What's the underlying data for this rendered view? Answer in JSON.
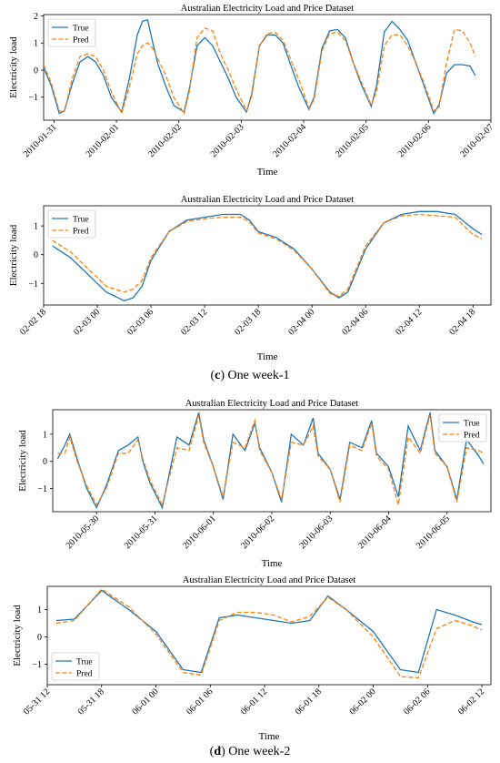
{
  "colors": {
    "true": "#1f77b4",
    "pred": "#ff7f0e"
  },
  "captions": [
    {
      "label": "c",
      "text": " One week-1"
    },
    {
      "label": "d",
      "text": " One week-2"
    }
  ],
  "chart_data": [
    {
      "type": "line",
      "title": "Australian Electricity Load and Price Dataset",
      "xlabel": "Time",
      "ylabel": "Electricity load",
      "x_range": [
        "2010-01-30 20:00",
        "2010-02-07 00:00"
      ],
      "ylim": [
        -1.85,
        2.05
      ],
      "x_ticks": [
        "2010-01-31",
        "2010-02-01",
        "2010-02-02",
        "2010-02-03",
        "2010-02-04",
        "2010-02-05",
        "2010-02-06",
        "2010-02-07"
      ],
      "y_ticks": [
        -1,
        0,
        1,
        2
      ],
      "legend": "upper left",
      "series": [
        {
          "name": "True",
          "color": "#1f77b4",
          "style": "solid",
          "x": [
            "2010-01-30 20:00",
            "2010-01-30 23:00",
            "2010-01-31 02:00",
            "2010-01-31 04:00",
            "2010-01-31 07:00",
            "2010-01-31 10:00",
            "2010-01-31 13:00",
            "2010-01-31 16:00",
            "2010-01-31 19:00",
            "2010-01-31 22:00",
            "2010-02-01 02:00",
            "2010-02-01 05:00",
            "2010-02-01 08:00",
            "2010-02-01 10:00",
            "2010-02-01 12:00",
            "2010-02-01 14:00",
            "2010-02-01 16:00",
            "2010-02-01 19:00",
            "2010-02-01 22:00",
            "2010-02-02 02:00",
            "2010-02-02 04:00",
            "2010-02-02 07:00",
            "2010-02-02 10:00",
            "2010-02-02 13:00",
            "2010-02-02 16:00",
            "2010-02-02 19:00",
            "2010-02-02 22:00",
            "2010-02-03 02:00",
            "2010-02-03 04:00",
            "2010-02-03 07:00",
            "2010-02-03 10:00",
            "2010-02-03 13:00",
            "2010-02-03 16:00",
            "2010-02-03 19:00",
            "2010-02-03 22:00",
            "2010-02-04 02:00",
            "2010-02-04 04:00",
            "2010-02-04 07:00",
            "2010-02-04 10:00",
            "2010-02-04 13:00",
            "2010-02-04 16:00",
            "2010-02-04 19:00",
            "2010-02-04 22:00",
            "2010-02-05 02:00",
            "2010-02-05 04:00",
            "2010-02-05 07:00",
            "2010-02-05 10:00",
            "2010-02-05 13:00",
            "2010-02-05 16:00",
            "2010-02-05 19:00",
            "2010-02-05 22:00",
            "2010-02-06 02:00",
            "2010-02-06 04:00",
            "2010-02-06 07:00",
            "2010-02-06 10:00",
            "2010-02-06 13:00",
            "2010-02-06 16:00",
            "2010-02-06 18:00"
          ],
          "y": [
            0.1,
            -0.6,
            -1.6,
            -1.5,
            -0.5,
            0.3,
            0.5,
            0.3,
            -0.2,
            -1.0,
            -1.55,
            -0.3,
            1.3,
            1.8,
            1.85,
            1.0,
            0.2,
            -0.6,
            -1.3,
            -1.55,
            -0.7,
            0.9,
            1.2,
            0.9,
            0.3,
            -0.3,
            -1.0,
            -1.55,
            -0.9,
            0.9,
            1.3,
            1.3,
            1.0,
            0.2,
            -0.6,
            -1.45,
            -1.0,
            0.8,
            1.45,
            1.5,
            1.2,
            0.3,
            -0.5,
            -1.35,
            -0.6,
            1.4,
            1.8,
            1.5,
            1.1,
            0.3,
            -0.5,
            -1.6,
            -1.3,
            -0.1,
            0.2,
            0.2,
            0.15,
            -0.2
          ]
        },
        {
          "name": "Pred",
          "color": "#ff7f0e",
          "style": "dashed",
          "x": [
            "2010-01-30 20:00",
            "2010-01-30 23:00",
            "2010-01-31 02:00",
            "2010-01-31 04:00",
            "2010-01-31 07:00",
            "2010-01-31 10:00",
            "2010-01-31 13:00",
            "2010-01-31 16:00",
            "2010-01-31 19:00",
            "2010-01-31 22:00",
            "2010-02-01 02:00",
            "2010-02-01 05:00",
            "2010-02-01 08:00",
            "2010-02-01 10:00",
            "2010-02-01 12:00",
            "2010-02-01 14:00",
            "2010-02-01 16:00",
            "2010-02-01 19:00",
            "2010-02-01 22:00",
            "2010-02-02 02:00",
            "2010-02-02 04:00",
            "2010-02-02 07:00",
            "2010-02-02 10:00",
            "2010-02-02 13:00",
            "2010-02-02 16:00",
            "2010-02-02 19:00",
            "2010-02-02 22:00",
            "2010-02-03 02:00",
            "2010-02-03 04:00",
            "2010-02-03 07:00",
            "2010-02-03 10:00",
            "2010-02-03 13:00",
            "2010-02-03 16:00",
            "2010-02-03 19:00",
            "2010-02-03 22:00",
            "2010-02-04 02:00",
            "2010-02-04 04:00",
            "2010-02-04 07:00",
            "2010-02-04 10:00",
            "2010-02-04 13:00",
            "2010-02-04 16:00",
            "2010-02-04 19:00",
            "2010-02-04 22:00",
            "2010-02-05 02:00",
            "2010-02-05 04:00",
            "2010-02-05 07:00",
            "2010-02-05 10:00",
            "2010-02-05 13:00",
            "2010-02-05 16:00",
            "2010-02-05 19:00",
            "2010-02-05 22:00",
            "2010-02-06 02:00",
            "2010-02-06 04:00",
            "2010-02-06 07:00",
            "2010-02-06 10:00",
            "2010-02-06 13:00",
            "2010-02-06 16:00",
            "2010-02-06 18:00"
          ],
          "y": [
            0.2,
            -0.5,
            -1.5,
            -1.55,
            -0.3,
            0.5,
            0.6,
            0.5,
            0.0,
            -0.8,
            -1.6,
            -0.6,
            0.6,
            0.9,
            1.0,
            0.8,
            0.4,
            -0.2,
            -1.0,
            -1.6,
            -0.8,
            1.2,
            1.55,
            1.45,
            0.6,
            0.0,
            -0.7,
            -1.5,
            -1.0,
            0.9,
            1.35,
            1.4,
            1.1,
            0.4,
            -0.3,
            -1.4,
            -1.1,
            0.7,
            1.35,
            1.4,
            1.1,
            0.3,
            -0.4,
            -1.3,
            -0.8,
            0.9,
            1.3,
            1.3,
            0.9,
            0.3,
            -0.4,
            -1.5,
            -1.4,
            0.3,
            1.5,
            1.45,
            1.0,
            0.5
          ]
        }
      ]
    },
    {
      "type": "line",
      "title": "Australian Electricity Load and Price Dataset",
      "xlabel": "Time",
      "ylabel": "Electricity load",
      "x_range": [
        "2010-02-02 18:00",
        "2010-02-04 20:00"
      ],
      "ylim": [
        -1.75,
        1.7
      ],
      "x_ticks": [
        "02-02 18",
        "02-03 00",
        "02-03 06",
        "02-03 12",
        "02-03 18",
        "02-04 00",
        "02-04 06",
        "02-04 12",
        "02-04 18"
      ],
      "y_ticks": [
        -1,
        0,
        1
      ],
      "legend": "upper left",
      "series": [
        {
          "name": "True",
          "color": "#1f77b4",
          "style": "solid",
          "x": [
            "2010-02-02 19:00",
            "2010-02-02 21:00",
            "2010-02-02 23:00",
            "2010-02-03 01:00",
            "2010-02-03 03:00",
            "2010-02-03 04:00",
            "2010-02-03 05:00",
            "2010-02-03 06:00",
            "2010-02-03 08:00",
            "2010-02-03 10:00",
            "2010-02-03 12:00",
            "2010-02-03 14:00",
            "2010-02-03 16:00",
            "2010-02-03 17:00",
            "2010-02-03 18:00",
            "2010-02-03 20:00",
            "2010-02-03 22:00",
            "2010-02-04 00:00",
            "2010-02-04 02:00",
            "2010-02-04 03:00",
            "2010-02-04 04:00",
            "2010-02-04 06:00",
            "2010-02-04 08:00",
            "2010-02-04 10:00",
            "2010-02-04 12:00",
            "2010-02-04 14:00",
            "2010-02-04 16:00",
            "2010-02-04 18:00",
            "2010-02-04 19:00"
          ],
          "y": [
            0.3,
            -0.1,
            -0.7,
            -1.3,
            -1.6,
            -1.5,
            -1.1,
            -0.2,
            0.8,
            1.2,
            1.3,
            1.4,
            1.4,
            1.2,
            0.8,
            0.6,
            0.2,
            -0.5,
            -1.3,
            -1.5,
            -1.3,
            0.2,
            1.1,
            1.4,
            1.5,
            1.5,
            1.4,
            0.9,
            0.7
          ]
        },
        {
          "name": "Pred",
          "color": "#ff7f0e",
          "style": "dashed",
          "x": [
            "2010-02-02 19:00",
            "2010-02-02 21:00",
            "2010-02-02 23:00",
            "2010-02-03 01:00",
            "2010-02-03 03:00",
            "2010-02-03 04:00",
            "2010-02-03 05:00",
            "2010-02-03 06:00",
            "2010-02-03 08:00",
            "2010-02-03 10:00",
            "2010-02-03 12:00",
            "2010-02-03 14:00",
            "2010-02-03 16:00",
            "2010-02-03 17:00",
            "2010-02-03 18:00",
            "2010-02-03 20:00",
            "2010-02-03 22:00",
            "2010-02-04 00:00",
            "2010-02-04 02:00",
            "2010-02-04 03:00",
            "2010-02-04 04:00",
            "2010-02-04 06:00",
            "2010-02-04 08:00",
            "2010-02-04 10:00",
            "2010-02-04 12:00",
            "2010-02-04 14:00",
            "2010-02-04 16:00",
            "2010-02-04 18:00",
            "2010-02-04 19:00"
          ],
          "y": [
            0.5,
            0.1,
            -0.5,
            -1.1,
            -1.3,
            -1.2,
            -0.9,
            -0.1,
            0.8,
            1.15,
            1.25,
            1.3,
            1.3,
            1.15,
            0.75,
            0.55,
            0.15,
            -0.5,
            -1.35,
            -1.45,
            -1.2,
            0.3,
            1.1,
            1.35,
            1.4,
            1.35,
            1.3,
            0.7,
            0.55
          ]
        }
      ]
    },
    {
      "type": "line",
      "title": "Australian Electricity Load and Price Dataset",
      "xlabel": "Time",
      "ylabel": "Electricity load",
      "x_range": [
        "2010-05-29 06:00",
        "2010-06-05 18:00"
      ],
      "ylim": [
        -1.85,
        1.9
      ],
      "x_ticks": [
        "2010-05-30",
        "2010-05-31",
        "2010-06-01",
        "2010-06-02",
        "2010-06-03",
        "2010-06-04",
        "2010-06-05"
      ],
      "y_ticks": [
        -1,
        0,
        1
      ],
      "legend": "upper right",
      "series": [
        {
          "name": "True",
          "color": "#1f77b4",
          "style": "solid",
          "x": [
            "2010-05-29 08:00",
            "2010-05-29 11:00",
            "2010-05-29 13:00",
            "2010-05-29 16:00",
            "2010-05-29 20:00",
            "2010-05-30 00:00",
            "2010-05-30 04:00",
            "2010-05-30 09:00",
            "2010-05-30 13:00",
            "2010-05-30 17:00",
            "2010-05-30 19:00",
            "2010-05-30 22:00",
            "2010-05-31 03:00",
            "2010-05-31 09:00",
            "2010-05-31 14:00",
            "2010-05-31 18:00",
            "2010-05-31 20:00",
            "2010-06-01 00:00",
            "2010-06-01 04:00",
            "2010-06-01 08:00",
            "2010-06-01 13:00",
            "2010-06-01 17:00",
            "2010-06-01 19:00",
            "2010-06-02 00:00",
            "2010-06-02 04:00",
            "2010-06-02 08:00",
            "2010-06-02 13:00",
            "2010-06-02 17:00",
            "2010-06-02 19:00",
            "2010-06-03 00:00",
            "2010-06-03 04:00",
            "2010-06-03 08:00",
            "2010-06-03 13:00",
            "2010-06-03 17:00",
            "2010-06-03 19:00",
            "2010-06-04 00:00",
            "2010-06-04 04:00",
            "2010-06-04 08:00",
            "2010-06-04 13:00",
            "2010-06-04 17:00",
            "2010-06-04 19:00",
            "2010-06-05 00:00",
            "2010-06-05 04:00",
            "2010-06-05 08:00",
            "2010-06-05 13:00",
            "2010-06-05 15:00"
          ],
          "y": [
            0.1,
            0.6,
            1.0,
            0.1,
            -1.0,
            -1.7,
            -0.9,
            0.4,
            0.6,
            0.9,
            0.0,
            -0.8,
            -1.7,
            0.9,
            0.6,
            1.8,
            0.8,
            -0.2,
            -1.4,
            1.0,
            0.4,
            1.4,
            0.5,
            -0.4,
            -1.5,
            1.0,
            0.6,
            1.6,
            0.3,
            -0.3,
            -1.4,
            0.7,
            0.5,
            1.5,
            0.3,
            -0.2,
            -1.3,
            1.3,
            0.4,
            1.8,
            0.4,
            -0.2,
            -1.4,
            0.8,
            0.2,
            -0.1
          ]
        },
        {
          "name": "Pred",
          "color": "#ff7f0e",
          "style": "dashed",
          "x": [
            "2010-05-29 08:00",
            "2010-05-29 11:00",
            "2010-05-29 13:00",
            "2010-05-29 16:00",
            "2010-05-29 20:00",
            "2010-05-30 00:00",
            "2010-05-30 04:00",
            "2010-05-30 09:00",
            "2010-05-30 13:00",
            "2010-05-30 17:00",
            "2010-05-30 19:00",
            "2010-05-30 22:00",
            "2010-05-31 03:00",
            "2010-05-31 09:00",
            "2010-05-31 14:00",
            "2010-05-31 18:00",
            "2010-05-31 20:00",
            "2010-06-01 00:00",
            "2010-06-01 04:00",
            "2010-06-01 08:00",
            "2010-06-01 13:00",
            "2010-06-01 17:00",
            "2010-06-01 19:00",
            "2010-06-02 00:00",
            "2010-06-02 04:00",
            "2010-06-02 08:00",
            "2010-06-02 13:00",
            "2010-06-02 17:00",
            "2010-06-02 19:00",
            "2010-06-03 00:00",
            "2010-06-03 04:00",
            "2010-06-03 08:00",
            "2010-06-03 13:00",
            "2010-06-03 17:00",
            "2010-06-03 19:00",
            "2010-06-04 00:00",
            "2010-06-04 04:00",
            "2010-06-04 08:00",
            "2010-06-04 13:00",
            "2010-06-04 17:00",
            "2010-06-04 19:00",
            "2010-06-05 00:00",
            "2010-06-05 04:00",
            "2010-06-05 08:00",
            "2010-06-05 13:00",
            "2010-06-05 15:00"
          ],
          "y": [
            0.3,
            0.3,
            0.9,
            0.0,
            -0.9,
            -1.6,
            -1.0,
            0.3,
            0.3,
            0.8,
            0.1,
            -0.7,
            -1.6,
            0.5,
            0.4,
            1.7,
            0.7,
            -0.2,
            -1.3,
            0.7,
            0.5,
            1.5,
            0.4,
            -0.4,
            -1.4,
            0.7,
            0.6,
            1.3,
            0.2,
            -0.3,
            -1.5,
            0.6,
            0.4,
            1.4,
            0.2,
            -0.3,
            -1.6,
            0.9,
            0.3,
            1.7,
            0.3,
            -0.2,
            -1.5,
            0.5,
            0.4,
            0.3
          ]
        }
      ]
    },
    {
      "type": "line",
      "title": "Australian Electricity Load and Price Dataset",
      "xlabel": "Time",
      "ylabel": "Electricity load",
      "x_range": [
        "2010-05-31 12:00",
        "2010-06-02 13:00"
      ],
      "ylim": [
        -1.75,
        1.85
      ],
      "x_ticks": [
        "05-31 12",
        "05-31 18",
        "06-01 00",
        "06-01 06",
        "06-01 12",
        "06-01 18",
        "06-02 00",
        "06-02 06",
        "06-02 12"
      ],
      "y_ticks": [
        -1,
        0,
        1
      ],
      "legend": "lower left",
      "series": [
        {
          "name": "True",
          "color": "#1f77b4",
          "style": "solid",
          "x": [
            "2010-05-31 13:00",
            "2010-05-31 15:00",
            "2010-05-31 18:00",
            "2010-05-31 21:00",
            "2010-06-01 00:00",
            "2010-06-01 03:00",
            "2010-06-01 05:00",
            "2010-06-01 07:00",
            "2010-06-01 09:00",
            "2010-06-01 11:00",
            "2010-06-01 13:00",
            "2010-06-01 15:00",
            "2010-06-01 17:00",
            "2010-06-01 19:00",
            "2010-06-01 21:00",
            "2010-06-02 00:00",
            "2010-06-02 03:00",
            "2010-06-02 05:00",
            "2010-06-02 07:00",
            "2010-06-02 09:00",
            "2010-06-02 11:00",
            "2010-06-02 12:00"
          ],
          "y": [
            0.6,
            0.65,
            1.7,
            1.0,
            0.2,
            -1.2,
            -1.3,
            0.7,
            0.8,
            0.7,
            0.6,
            0.5,
            0.6,
            1.5,
            1.0,
            0.2,
            -1.2,
            -1.3,
            1.0,
            0.8,
            0.55,
            0.45
          ]
        },
        {
          "name": "Pred",
          "color": "#ff7f0e",
          "style": "dashed",
          "x": [
            "2010-05-31 13:00",
            "2010-05-31 15:00",
            "2010-05-31 18:00",
            "2010-05-31 21:00",
            "2010-06-01 00:00",
            "2010-06-01 03:00",
            "2010-06-01 05:00",
            "2010-06-01 07:00",
            "2010-06-01 09:00",
            "2010-06-01 11:00",
            "2010-06-01 13:00",
            "2010-06-01 15:00",
            "2010-06-01 17:00",
            "2010-06-01 19:00",
            "2010-06-01 21:00",
            "2010-06-02 00:00",
            "2010-06-02 03:00",
            "2010-06-02 05:00",
            "2010-06-02 07:00",
            "2010-06-02 09:00",
            "2010-06-02 11:00",
            "2010-06-02 12:00"
          ],
          "y": [
            0.5,
            0.6,
            1.75,
            1.1,
            0.1,
            -1.3,
            -1.4,
            0.6,
            0.9,
            0.9,
            0.8,
            0.55,
            0.75,
            1.45,
            1.0,
            0.0,
            -1.45,
            -1.5,
            0.3,
            0.6,
            0.4,
            0.25
          ]
        }
      ]
    }
  ]
}
